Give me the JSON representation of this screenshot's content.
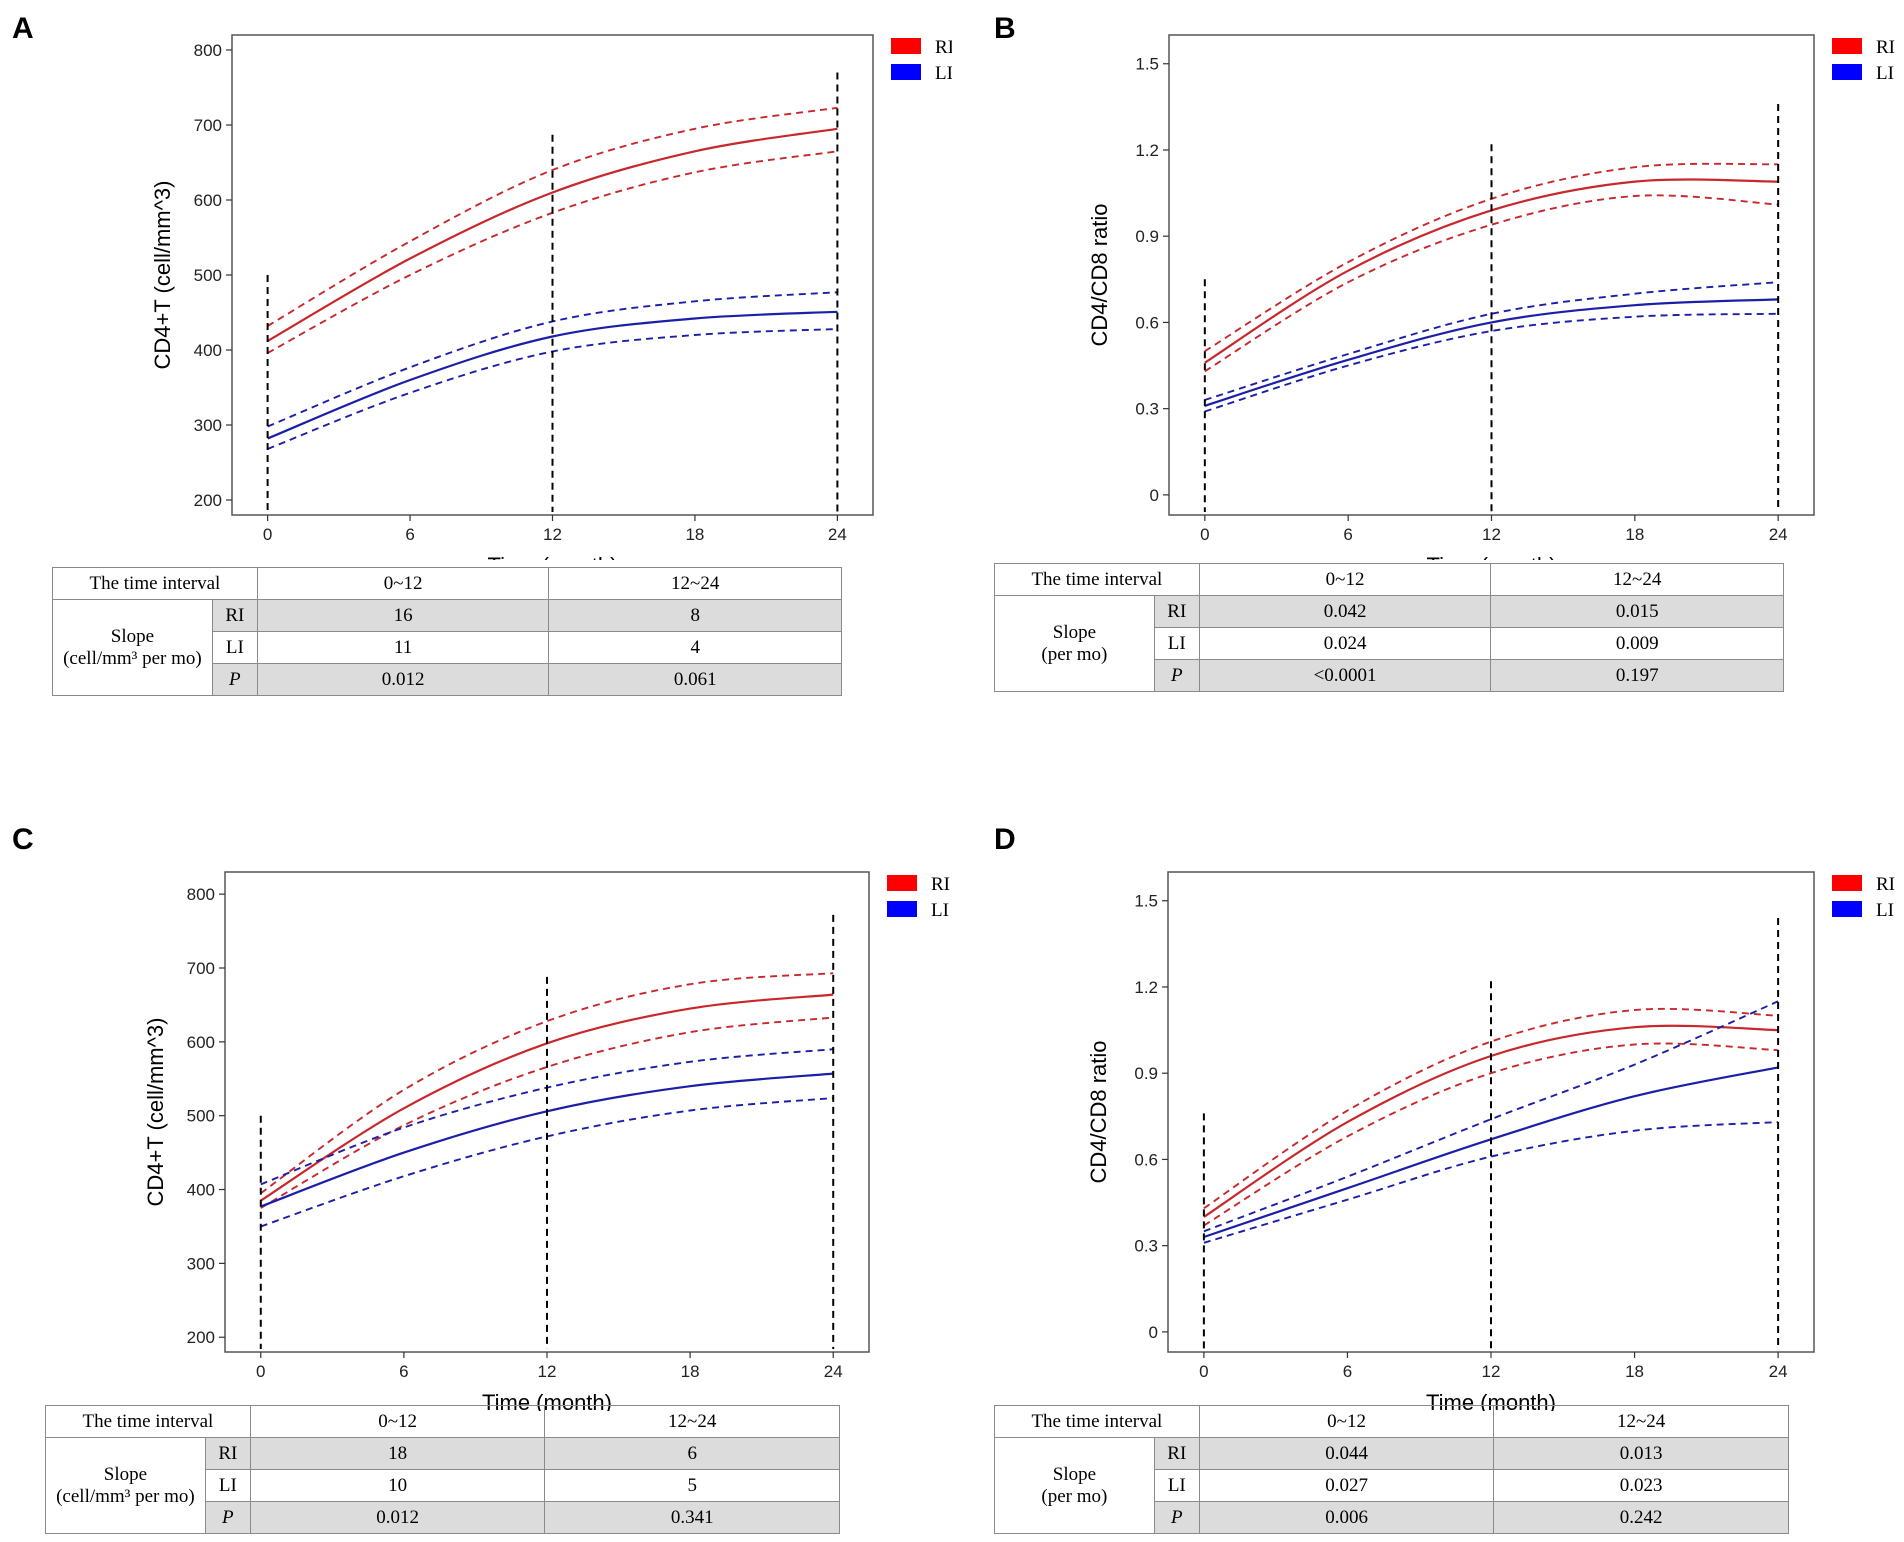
{
  "legend": [
    {
      "name": "RI",
      "color": "#ff0000"
    },
    {
      "name": "LI",
      "color": "#0000ff"
    }
  ],
  "line_colors": {
    "RI": "#c8282c",
    "LI": "#1b1fa8"
  },
  "table_header": {
    "interval": "The time interval",
    "col1": "0~12",
    "col2": "12~24"
  },
  "chart_data": [
    {
      "panel": "A",
      "type": "line",
      "title": "",
      "xlabel": "Time (month)",
      "ylabel": "CD4+T (cell/mm^3)",
      "xlim": [
        -1.5,
        25.5
      ],
      "ylim": [
        180,
        820
      ],
      "xticks": [
        0,
        6,
        12,
        18,
        24
      ],
      "xtick_labels": [
        "0",
        "6",
        "12",
        "18",
        "24"
      ],
      "yticks": [
        200,
        300,
        400,
        500,
        600,
        700,
        800
      ],
      "ytick_labels": [
        "200",
        "300",
        "400",
        "500",
        "600",
        "700",
        "800"
      ],
      "vlines": [
        {
          "x": 0,
          "top": 500
        },
        {
          "x": 12,
          "top": 687
        },
        {
          "x": 24,
          "top": 770
        }
      ],
      "series": [
        {
          "name": "RI",
          "style": "solid",
          "x": [
            0,
            6,
            12,
            18,
            24
          ],
          "y": [
            412,
            522,
            610,
            665,
            695
          ]
        },
        {
          "name": "RI upper",
          "style": "dashed",
          "x": [
            0,
            6,
            12,
            18,
            24
          ],
          "y": [
            432,
            545,
            640,
            695,
            723
          ]
        },
        {
          "name": "RI lower",
          "style": "dashed",
          "x": [
            0,
            6,
            12,
            18,
            24
          ],
          "y": [
            396,
            500,
            583,
            637,
            665
          ]
        },
        {
          "name": "LI",
          "style": "solid",
          "x": [
            0,
            6,
            12,
            18,
            24
          ],
          "y": [
            282,
            360,
            418,
            442,
            451
          ]
        },
        {
          "name": "LI upper",
          "style": "dashed",
          "x": [
            0,
            6,
            12,
            18,
            24
          ],
          "y": [
            298,
            377,
            438,
            465,
            477
          ]
        },
        {
          "name": "LI lower",
          "style": "dashed",
          "x": [
            0,
            6,
            12,
            18,
            24
          ],
          "y": [
            268,
            343,
            398,
            420,
            428
          ]
        }
      ],
      "table": {
        "slope_lines": [
          "Slope",
          "(cell/mm³ per mo)"
        ],
        "rows": [
          [
            "RI",
            "16",
            "8"
          ],
          [
            "LI",
            "11",
            "4"
          ],
          [
            "P",
            "0.012",
            "0.061"
          ]
        ]
      }
    },
    {
      "panel": "B",
      "type": "line",
      "title": "",
      "xlabel": "Time (month)",
      "ylabel": "CD4/CD8 ratio",
      "xlim": [
        -1.5,
        25.5
      ],
      "ylim": [
        -0.07,
        1.6
      ],
      "xticks": [
        0,
        6,
        12,
        18,
        24
      ],
      "xtick_labels": [
        "0",
        "6",
        "12",
        "18",
        "24"
      ],
      "yticks": [
        0,
        0.3,
        0.6,
        0.9,
        1.2,
        1.5
      ],
      "ytick_labels": [
        "0",
        "0.3",
        "0.6",
        "0.9",
        "1.2",
        "1.5"
      ],
      "vlines": [
        {
          "x": 0,
          "top": 0.75
        },
        {
          "x": 12,
          "top": 1.22
        },
        {
          "x": 24,
          "top": 1.36
        }
      ],
      "series": [
        {
          "name": "RI",
          "style": "solid",
          "x": [
            0,
            6,
            12,
            18,
            24
          ],
          "y": [
            0.46,
            0.78,
            0.99,
            1.09,
            1.09
          ]
        },
        {
          "name": "RI upper",
          "style": "dashed",
          "x": [
            0,
            6,
            12,
            18,
            24
          ],
          "y": [
            0.5,
            0.81,
            1.03,
            1.14,
            1.15
          ]
        },
        {
          "name": "RI lower",
          "style": "dashed",
          "x": [
            0,
            6,
            12,
            18,
            24
          ],
          "y": [
            0.43,
            0.74,
            0.94,
            1.04,
            1.01
          ]
        },
        {
          "name": "LI",
          "style": "solid",
          "x": [
            0,
            6,
            12,
            18,
            24
          ],
          "y": [
            0.31,
            0.47,
            0.6,
            0.66,
            0.68
          ]
        },
        {
          "name": "LI upper",
          "style": "dashed",
          "x": [
            0,
            6,
            12,
            18,
            24
          ],
          "y": [
            0.33,
            0.49,
            0.63,
            0.7,
            0.74
          ]
        },
        {
          "name": "LI lower",
          "style": "dashed",
          "x": [
            0,
            6,
            12,
            18,
            24
          ],
          "y": [
            0.29,
            0.45,
            0.57,
            0.62,
            0.63
          ]
        }
      ],
      "table": {
        "slope_lines": [
          "Slope",
          "(per mo)"
        ],
        "rows": [
          [
            "RI",
            "0.042",
            "0.015"
          ],
          [
            "LI",
            "0.024",
            "0.009"
          ],
          [
            "P",
            "<0.0001",
            "0.197"
          ]
        ]
      }
    },
    {
      "panel": "C",
      "type": "line",
      "title": "",
      "xlabel": "Time (month)",
      "ylabel": "CD4+T (cell/mm^3)",
      "xlim": [
        -1.5,
        25.5
      ],
      "ylim": [
        180,
        830
      ],
      "xticks": [
        0,
        6,
        12,
        18,
        24
      ],
      "xtick_labels": [
        "0",
        "6",
        "12",
        "18",
        "24"
      ],
      "yticks": [
        200,
        300,
        400,
        500,
        600,
        700,
        800
      ],
      "ytick_labels": [
        "200",
        "300",
        "400",
        "500",
        "600",
        "700",
        "800"
      ],
      "vlines": [
        {
          "x": 0,
          "top": 500
        },
        {
          "x": 12,
          "top": 688
        },
        {
          "x": 24,
          "top": 772
        }
      ],
      "series": [
        {
          "name": "RI",
          "style": "solid",
          "x": [
            0,
            6,
            12,
            18,
            24
          ],
          "y": [
            385,
            510,
            598,
            645,
            664
          ]
        },
        {
          "name": "RI upper",
          "style": "dashed",
          "x": [
            0,
            6,
            12,
            18,
            24
          ],
          "y": [
            395,
            535,
            628,
            678,
            693
          ]
        },
        {
          "name": "RI lower",
          "style": "dashed",
          "x": [
            0,
            6,
            12,
            18,
            24
          ],
          "y": [
            375,
            487,
            566,
            613,
            633
          ]
        },
        {
          "name": "LI",
          "style": "solid",
          "x": [
            0,
            6,
            12,
            18,
            24
          ],
          "y": [
            377,
            450,
            506,
            540,
            557
          ]
        },
        {
          "name": "LI upper",
          "style": "dashed",
          "x": [
            0,
            6,
            12,
            18,
            24
          ],
          "y": [
            407,
            484,
            538,
            573,
            590
          ]
        },
        {
          "name": "LI lower",
          "style": "dashed",
          "x": [
            0,
            6,
            12,
            18,
            24
          ],
          "y": [
            350,
            418,
            472,
            507,
            524
          ]
        }
      ],
      "table": {
        "slope_lines": [
          "Slope",
          "(cell/mm³ per mo)"
        ],
        "rows": [
          [
            "RI",
            "18",
            "6"
          ],
          [
            "LI",
            "10",
            "5"
          ],
          [
            "P",
            "0.012",
            "0.341"
          ]
        ]
      }
    },
    {
      "panel": "D",
      "type": "line",
      "title": "",
      "xlabel": "Time (month)",
      "ylabel": "CD4/CD8 ratio",
      "xlim": [
        -1.5,
        25.5
      ],
      "ylim": [
        -0.07,
        1.6
      ],
      "xticks": [
        0,
        6,
        12,
        18,
        24
      ],
      "xtick_labels": [
        "0",
        "6",
        "12",
        "18",
        "24"
      ],
      "yticks": [
        0,
        0.3,
        0.6,
        0.9,
        1.2,
        1.5
      ],
      "ytick_labels": [
        "0",
        "0.3",
        "0.6",
        "0.9",
        "1.2",
        "1.5"
      ],
      "vlines": [
        {
          "x": 0,
          "top": 0.76
        },
        {
          "x": 12,
          "top": 1.22
        },
        {
          "x": 24,
          "top": 1.44
        }
      ],
      "series": [
        {
          "name": "RI",
          "style": "solid",
          "x": [
            0,
            6,
            12,
            18,
            24
          ],
          "y": [
            0.4,
            0.73,
            0.96,
            1.06,
            1.05
          ]
        },
        {
          "name": "RI upper",
          "style": "dashed",
          "x": [
            0,
            6,
            12,
            18,
            24
          ],
          "y": [
            0.43,
            0.77,
            1.01,
            1.12,
            1.1
          ]
        },
        {
          "name": "RI lower",
          "style": "dashed",
          "x": [
            0,
            6,
            12,
            18,
            24
          ],
          "y": [
            0.37,
            0.68,
            0.9,
            1.0,
            0.98
          ]
        },
        {
          "name": "LI",
          "style": "solid",
          "x": [
            0,
            6,
            12,
            18,
            24
          ],
          "y": [
            0.33,
            0.5,
            0.67,
            0.82,
            0.92
          ]
        },
        {
          "name": "LI upper",
          "style": "dashed",
          "x": [
            0,
            6,
            12,
            18,
            24
          ],
          "y": [
            0.35,
            0.54,
            0.74,
            0.93,
            1.15
          ]
        },
        {
          "name": "LI lower",
          "style": "dashed",
          "x": [
            0,
            6,
            12,
            18,
            24
          ],
          "y": [
            0.31,
            0.46,
            0.61,
            0.7,
            0.73
          ]
        }
      ],
      "table": {
        "slope_lines": [
          "Slope",
          "(per mo)"
        ],
        "rows": [
          [
            "RI",
            "0.044",
            "0.013"
          ],
          [
            "LI",
            "0.027",
            "0.023"
          ],
          [
            "P",
            "0.006",
            "0.242"
          ]
        ]
      }
    }
  ]
}
